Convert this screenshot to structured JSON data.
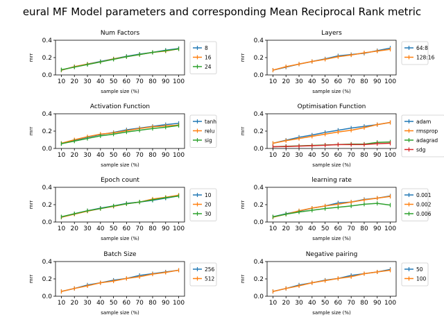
{
  "chart_data": {
    "title": "eural MF Model parameters and corresponding Mean Reciprocal Rank metric",
    "colors": [
      "#1f77b4",
      "#ff7f0e",
      "#2ca02c",
      "#d62728"
    ],
    "panels": [
      {
        "type": "line",
        "title": "Num Factors",
        "xlabel": "sample size (%)",
        "ylabel": "mrr",
        "x": [
          10,
          20,
          30,
          40,
          50,
          60,
          70,
          80,
          90,
          100
        ],
        "ylim": [
          0,
          0.4
        ],
        "yticks": [
          "0.0",
          "0.2",
          "0.4"
        ],
        "legend_position": "outside-right",
        "series": [
          {
            "name": "8",
            "values": [
              0.055,
              0.095,
              0.125,
              0.155,
              0.185,
              0.215,
              0.24,
              0.26,
              0.285,
              0.305
            ]
          },
          {
            "name": "16",
            "values": [
              0.055,
              0.095,
              0.125,
              0.15,
              0.185,
              0.21,
              0.235,
              0.26,
              0.275,
              0.3
            ]
          },
          {
            "name": "24",
            "values": [
              0.06,
              0.09,
              0.12,
              0.15,
              0.18,
              0.21,
              0.235,
              0.26,
              0.28,
              0.3
            ]
          }
        ]
      },
      {
        "type": "line",
        "title": "Layers",
        "xlabel": "sample size (%)",
        "ylabel": "mrr",
        "x": [
          10,
          20,
          30,
          40,
          50,
          60,
          70,
          80,
          90,
          100
        ],
        "ylim": [
          0,
          0.4
        ],
        "yticks": [
          "0.0",
          "0.2",
          "0.4"
        ],
        "legend_position": "outside-right",
        "series": [
          {
            "name": "64:8",
            "values": [
              0.055,
              0.09,
              0.125,
              0.155,
              0.185,
              0.22,
              0.235,
              0.25,
              0.28,
              0.31
            ]
          },
          {
            "name": "128:16",
            "values": [
              0.055,
              0.095,
              0.125,
              0.155,
              0.18,
              0.21,
              0.23,
              0.255,
              0.275,
              0.295
            ]
          }
        ]
      },
      {
        "type": "line",
        "title": "Activation Function",
        "xlabel": "sample size (%)",
        "ylabel": "mrr",
        "x": [
          10,
          20,
          30,
          40,
          50,
          60,
          70,
          80,
          90,
          100
        ],
        "ylim": [
          0,
          0.4
        ],
        "yticks": [
          "0.0",
          "0.2",
          "0.4"
        ],
        "legend_position": "outside-right",
        "series": [
          {
            "name": "tanh",
            "values": [
              0.055,
              0.095,
              0.13,
              0.16,
              0.185,
              0.215,
              0.235,
              0.255,
              0.275,
              0.29
            ]
          },
          {
            "name": "relu",
            "values": [
              0.06,
              0.1,
              0.135,
              0.165,
              0.18,
              0.205,
              0.23,
              0.25,
              0.26,
              0.27
            ]
          },
          {
            "name": "sig",
            "values": [
              0.055,
              0.085,
              0.115,
              0.145,
              0.165,
              0.19,
              0.21,
              0.23,
              0.245,
              0.265
            ]
          }
        ]
      },
      {
        "type": "line",
        "title": "Optimisation Function",
        "xlabel": "sample size (%)",
        "ylabel": "mrr",
        "x": [
          10,
          20,
          30,
          40,
          50,
          60,
          70,
          80,
          90,
          100
        ],
        "ylim": [
          0,
          0.4
        ],
        "yticks": [
          "0.0",
          "0.2",
          "0.4"
        ],
        "legend_position": "outside-right",
        "series": [
          {
            "name": "adam",
            "values": [
              0.06,
              0.095,
              0.13,
              0.155,
              0.185,
              0.21,
              0.235,
              0.255,
              0.275,
              0.3
            ]
          },
          {
            "name": "rmsprop",
            "values": [
              0.06,
              0.09,
              0.115,
              0.14,
              0.165,
              0.19,
              0.21,
              0.24,
              0.275,
              0.3
            ]
          },
          {
            "name": "adagrad",
            "values": [
              0.02,
              0.025,
              0.03,
              0.035,
              0.04,
              0.045,
              0.05,
              0.05,
              0.07,
              0.075
            ]
          },
          {
            "name": "sdg",
            "values": [
              0.02,
              0.022,
              0.027,
              0.032,
              0.037,
              0.045,
              0.045,
              0.045,
              0.055,
              0.06
            ]
          }
        ]
      },
      {
        "type": "line",
        "title": "Epoch count",
        "xlabel": "sample size (%)",
        "ylabel": "mrr",
        "x": [
          10,
          20,
          30,
          40,
          50,
          60,
          70,
          80,
          90,
          100
        ],
        "ylim": [
          0,
          0.4
        ],
        "yticks": [
          "0.0",
          "0.2",
          "0.4"
        ],
        "legend_position": "outside-right",
        "series": [
          {
            "name": "10",
            "values": [
              0.055,
              0.095,
              0.13,
              0.16,
              0.185,
              0.215,
              0.23,
              0.25,
              0.275,
              0.3
            ]
          },
          {
            "name": "20",
            "values": [
              0.055,
              0.09,
              0.125,
              0.155,
              0.18,
              0.21,
              0.23,
              0.265,
              0.285,
              0.31
            ]
          },
          {
            "name": "30",
            "values": [
              0.06,
              0.095,
              0.13,
              0.155,
              0.185,
              0.21,
              0.23,
              0.255,
              0.28,
              0.3
            ]
          }
        ]
      },
      {
        "type": "line",
        "title": "learning rate",
        "xlabel": "sample size (%)",
        "ylabel": "mrr",
        "x": [
          10,
          20,
          30,
          40,
          50,
          60,
          70,
          80,
          90,
          100
        ],
        "ylim": [
          0,
          0.4
        ],
        "yticks": [
          "0.0",
          "0.2",
          "0.4"
        ],
        "legend_position": "outside-right",
        "series": [
          {
            "name": "0.001",
            "values": [
              0.06,
              0.095,
              0.125,
              0.16,
              0.185,
              0.22,
              0.23,
              0.26,
              0.275,
              0.3
            ]
          },
          {
            "name": "0.002",
            "values": [
              0.055,
              0.09,
              0.13,
              0.16,
              0.185,
              0.205,
              0.23,
              0.255,
              0.275,
              0.295
            ]
          },
          {
            "name": "0.006",
            "values": [
              0.06,
              0.09,
              0.115,
              0.135,
              0.155,
              0.17,
              0.185,
              0.205,
              0.215,
              0.195
            ]
          }
        ]
      },
      {
        "type": "line",
        "title": "Batch Size",
        "xlabel": "sample size (%)",
        "ylabel": "mrr",
        "x": [
          10,
          20,
          30,
          40,
          50,
          60,
          70,
          80,
          90,
          100
        ],
        "ylim": [
          0,
          0.4
        ],
        "yticks": [
          "0.0",
          "0.2",
          "0.4"
        ],
        "legend_position": "outside-right",
        "series": [
          {
            "name": "256",
            "values": [
              0.055,
              0.09,
              0.13,
              0.155,
              0.185,
              0.205,
              0.24,
              0.26,
              0.28,
              0.3
            ]
          },
          {
            "name": "512",
            "values": [
              0.055,
              0.09,
              0.12,
              0.155,
              0.175,
              0.205,
              0.225,
              0.255,
              0.275,
              0.3
            ]
          }
        ]
      },
      {
        "type": "line",
        "title": "Negative pairing",
        "xlabel": "sample size (%)",
        "ylabel": "mrr",
        "x": [
          10,
          20,
          30,
          40,
          50,
          60,
          70,
          80,
          90,
          100
        ],
        "ylim": [
          0,
          0.4
        ],
        "yticks": [
          "0.0",
          "0.2",
          "0.4"
        ],
        "legend_position": "outside-right",
        "series": [
          {
            "name": "50",
            "values": [
              0.055,
              0.09,
              0.13,
              0.155,
              0.185,
              0.205,
              0.24,
              0.26,
              0.28,
              0.31
            ]
          },
          {
            "name": "100",
            "values": [
              0.055,
              0.09,
              0.12,
              0.155,
              0.18,
              0.205,
              0.225,
              0.26,
              0.28,
              0.3
            ]
          }
        ]
      }
    ]
  }
}
